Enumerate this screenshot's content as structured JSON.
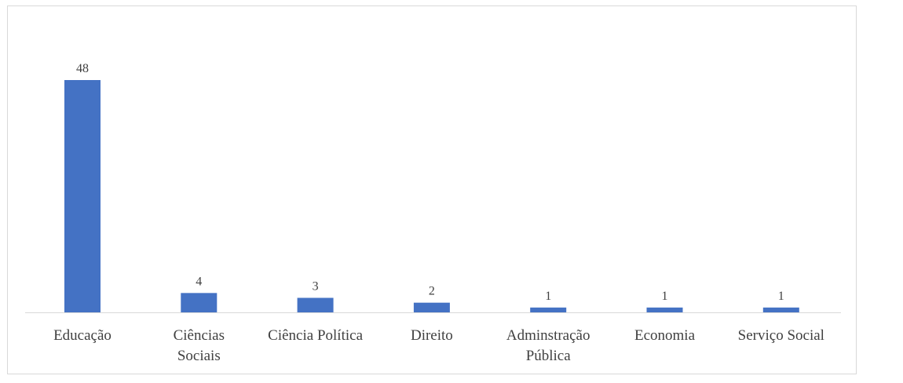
{
  "chart_data": {
    "type": "bar",
    "title": "",
    "xlabel": "",
    "ylabel": "",
    "categories": [
      [
        "Educação"
      ],
      [
        "Ciências",
        "Sociais"
      ],
      [
        "Ciência Política"
      ],
      [
        "Direito"
      ],
      [
        "Adminstração",
        "Pública"
      ],
      [
        "Economia"
      ],
      [
        "Serviço Social"
      ]
    ],
    "values": [
      48,
      4,
      3,
      2,
      1,
      1,
      1
    ],
    "value_labels": [
      "48",
      "4",
      "3",
      "2",
      "1",
      "1",
      "1"
    ],
    "ylim": [
      0,
      48
    ],
    "grid": false,
    "legend": "none",
    "bar_color": "#4472c4",
    "axis_color": "#d9d9d9",
    "text_color": "#404040"
  }
}
